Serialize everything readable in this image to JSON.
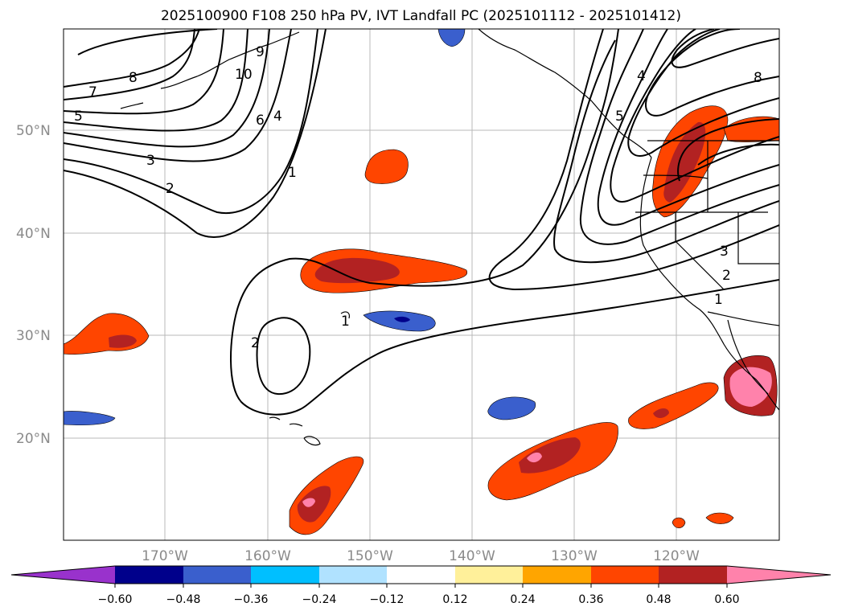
{
  "title": "2025100900 F108 250 hPa PV, IVT Landfall PC (2025101112 - 2025101412)",
  "map": {
    "lat_labels": [
      "50°N",
      "40°N",
      "30°N",
      "20°N"
    ],
    "lon_labels": [
      "170°W",
      "160°W",
      "150°W",
      "140°W",
      "130°W",
      "120°W"
    ],
    "contour_labels": [
      "8",
      "7",
      "5",
      "3",
      "2",
      "10",
      "9",
      "6",
      "4",
      "1",
      "2",
      "1",
      "5",
      "4",
      "8",
      "3",
      "2",
      "1"
    ]
  },
  "colorbar": {
    "ticks": [
      "−0.60",
      "−0.48",
      "−0.36",
      "−0.24",
      "−0.12",
      "0.12",
      "0.24",
      "0.36",
      "0.48",
      "0.60"
    ],
    "colors": {
      "neg_extend": "#9932cc",
      "n060": "#00008b",
      "n048": "#3a5fcd",
      "n036": "#00bfff",
      "n024": "#b0e2ff",
      "n012": "#ffffff",
      "p012": "#fff09a",
      "p024": "#ffa500",
      "p036": "#ff4500",
      "p048": "#b22222",
      "pos_extend": "#ff82ab"
    }
  },
  "chart_data": {
    "type": "contour-map",
    "title": "2025100900 F108 250 hPa PV, IVT Landfall PC (2025101112 - 2025101412)",
    "projection": "PlateCarree",
    "lon_range": [
      -180,
      -110
    ],
    "lat_range": [
      10,
      60
    ],
    "contours": {
      "field": "250 hPa PV",
      "levels": [
        1,
        2,
        3,
        4,
        5,
        6,
        7,
        8,
        9,
        10
      ]
    },
    "shading": {
      "field": "IVT Landfall PC",
      "levels": [
        -0.6,
        -0.48,
        -0.36,
        -0.24,
        -0.12,
        0.12,
        0.24,
        0.36,
        0.48,
        0.6
      ]
    }
  }
}
